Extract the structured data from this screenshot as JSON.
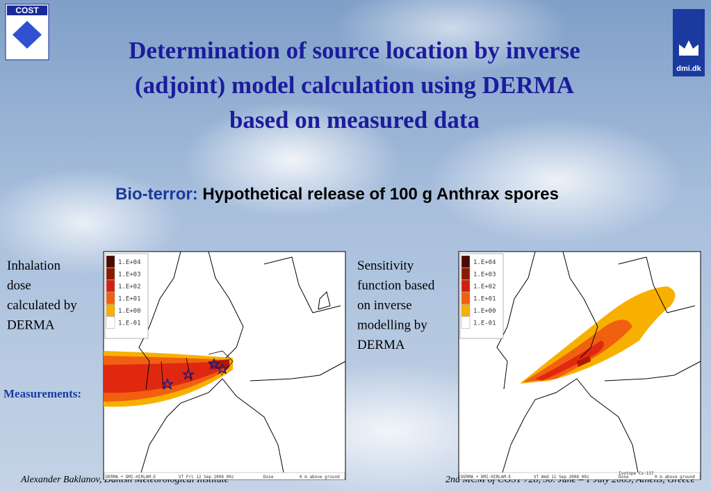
{
  "logos": {
    "left": "COST",
    "right": "dmi.dk"
  },
  "header": {
    "title_lines": [
      "Determination of source location by inverse",
      "(adjoint) model calculation using DERMA",
      "based on measured data"
    ]
  },
  "subtitle": {
    "label": "Bio-terror:",
    "text": "Hypothetical release of 100 g Anthrax spores"
  },
  "panels": [
    {
      "caption_lines": [
        "Inhalation",
        "dose",
        "calculated by",
        "DERMA"
      ],
      "legend": [
        "1.E+04",
        "1.E+03",
        "1.E+02",
        "1.E+01",
        "1.E+00",
        "1.E-01"
      ],
      "footer": [
        "DERMA + DMI-HIRLAM-E",
        "VT Fri 12 Sep 2008 00z",
        "Dose",
        "0 m above ground"
      ]
    },
    {
      "caption_lines": [
        "Sensitivity",
        "function based",
        "on  inverse",
        "modelling by",
        "DERMA"
      ],
      "legend": [
        "1.E+04",
        "1.E+03",
        "1.E+02",
        "1.E+01",
        "1.E+00",
        "1.E-01"
      ],
      "footer": [
        "DERMA + DMI-HIRLAM-E",
        "VT Wed 11 Sep 2008 00z",
        "Isotope Cs-137",
        "Dose",
        "0 m above ground"
      ]
    }
  ],
  "measurements_label": "Measurements:",
  "footer": {
    "left": "Alexander Baklanov, Danish Meteorological Institute",
    "right": "2nd MCM of COST 728, 30. June – 1 July 2005, Athens, Greece"
  }
}
